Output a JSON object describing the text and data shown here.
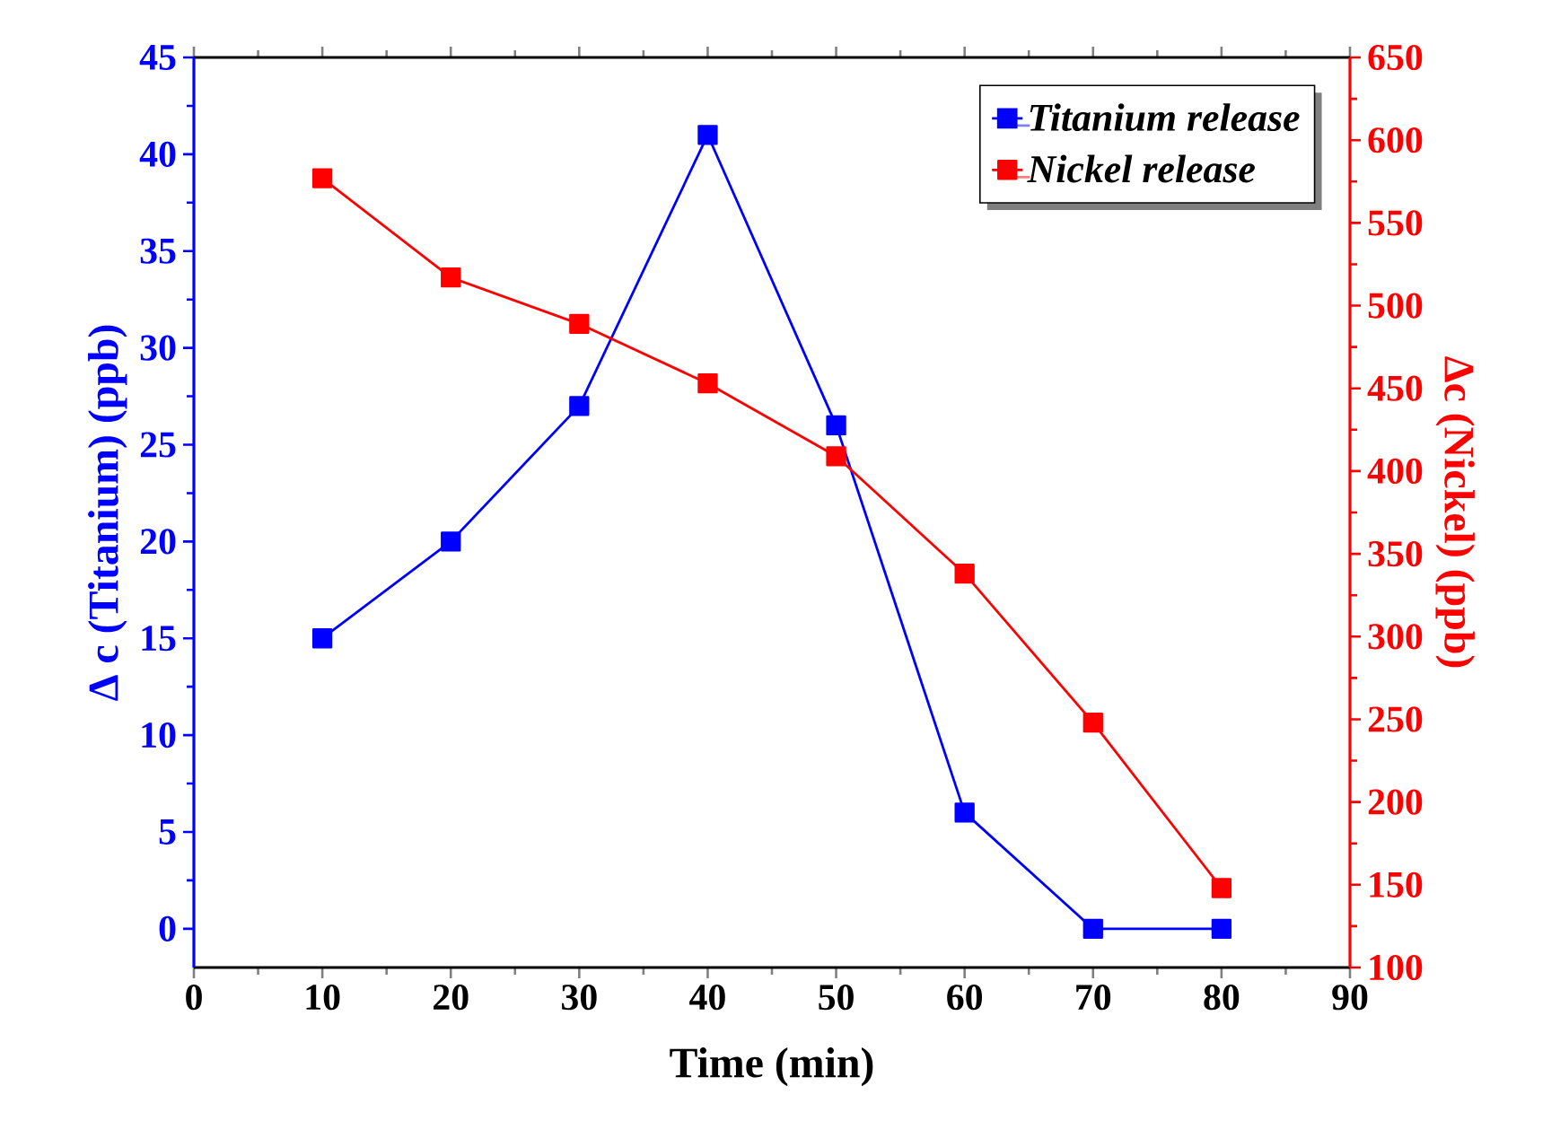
{
  "chart_data": {
    "type": "line",
    "xlabel": "Time (min)",
    "ylabel": "Δ c (Titanium) (ppb)",
    "y2label": "Δc (Nickel) (ppb)",
    "x": [
      10,
      20,
      30,
      40,
      50,
      60,
      70,
      80
    ],
    "series": [
      {
        "name": "Titanium release",
        "color": "#0000ff",
        "values": [
          15,
          20,
          27,
          41,
          26,
          6,
          0,
          0
        ]
      },
      {
        "name": "Nickel release",
        "color": "#ff0000",
        "axis": "y2",
        "values": [
          577,
          517,
          489,
          453,
          409,
          338,
          248,
          148
        ]
      }
    ],
    "xlim": [
      0,
      90
    ],
    "xticks": [
      0,
      10,
      20,
      30,
      40,
      50,
      60,
      70,
      80,
      90
    ],
    "ylim": [
      -2,
      45
    ],
    "yticks": [
      0,
      5,
      10,
      15,
      20,
      25,
      30,
      35,
      40,
      45
    ],
    "y2lim": [
      100,
      650
    ],
    "y2ticks": [
      100,
      150,
      200,
      250,
      300,
      350,
      400,
      450,
      500,
      550,
      600,
      650
    ],
    "legend": "top right",
    "marker": "square",
    "line_style": "solid",
    "grid": false
  }
}
